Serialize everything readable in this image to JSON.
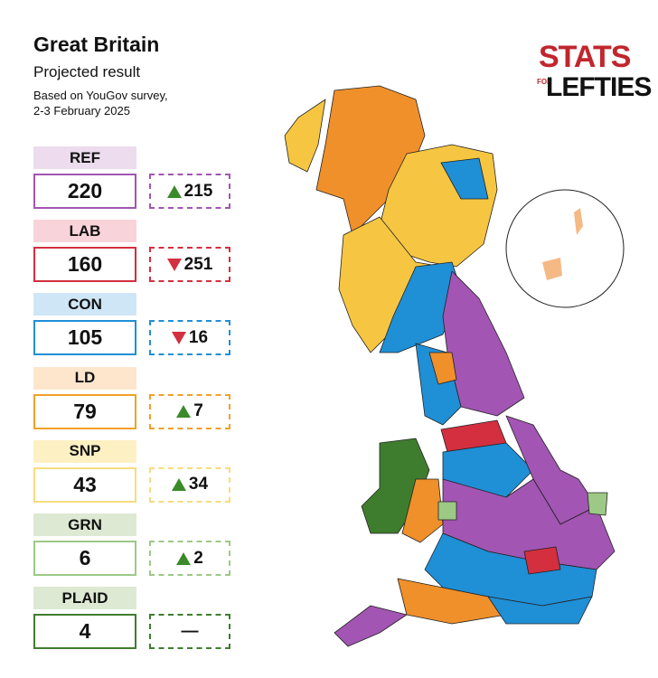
{
  "header": {
    "title": "Great Britain",
    "subtitle": "Projected result",
    "source_line1": "Based on YouGov survey,",
    "source_line2": "2-3 February 2025"
  },
  "logo": {
    "top": "STATS",
    "small": "FOR",
    "bottom": "LEFTIES"
  },
  "parties": [
    {
      "name": "REF",
      "seats": 220,
      "change": 215,
      "direction": "up",
      "color": "#a255b2",
      "label_bg": "#ecdcee"
    },
    {
      "name": "LAB",
      "seats": 160,
      "change": 251,
      "direction": "down",
      "color": "#d32f3f",
      "label_bg": "#f8d3d9"
    },
    {
      "name": "CON",
      "seats": 105,
      "change": 16,
      "direction": "down",
      "color": "#1f8fd6",
      "label_bg": "#cfe6f7"
    },
    {
      "name": "LD",
      "seats": 79,
      "change": 7,
      "direction": "up",
      "color": "#f0a02a",
      "label_bg": "#fde6cc"
    },
    {
      "name": "SNP",
      "seats": 43,
      "change": 34,
      "direction": "up",
      "color": "#f6dc7e",
      "label_bg": "#fdf0c2"
    },
    {
      "name": "GRN",
      "seats": 6,
      "change": 2,
      "direction": "up",
      "color": "#9cc986",
      "label_bg": "#dde9d3"
    },
    {
      "name": "PLAID",
      "seats": 4,
      "change": "—",
      "color": "#3f7d2e",
      "label_bg": "#dde9d3"
    }
  ]
}
